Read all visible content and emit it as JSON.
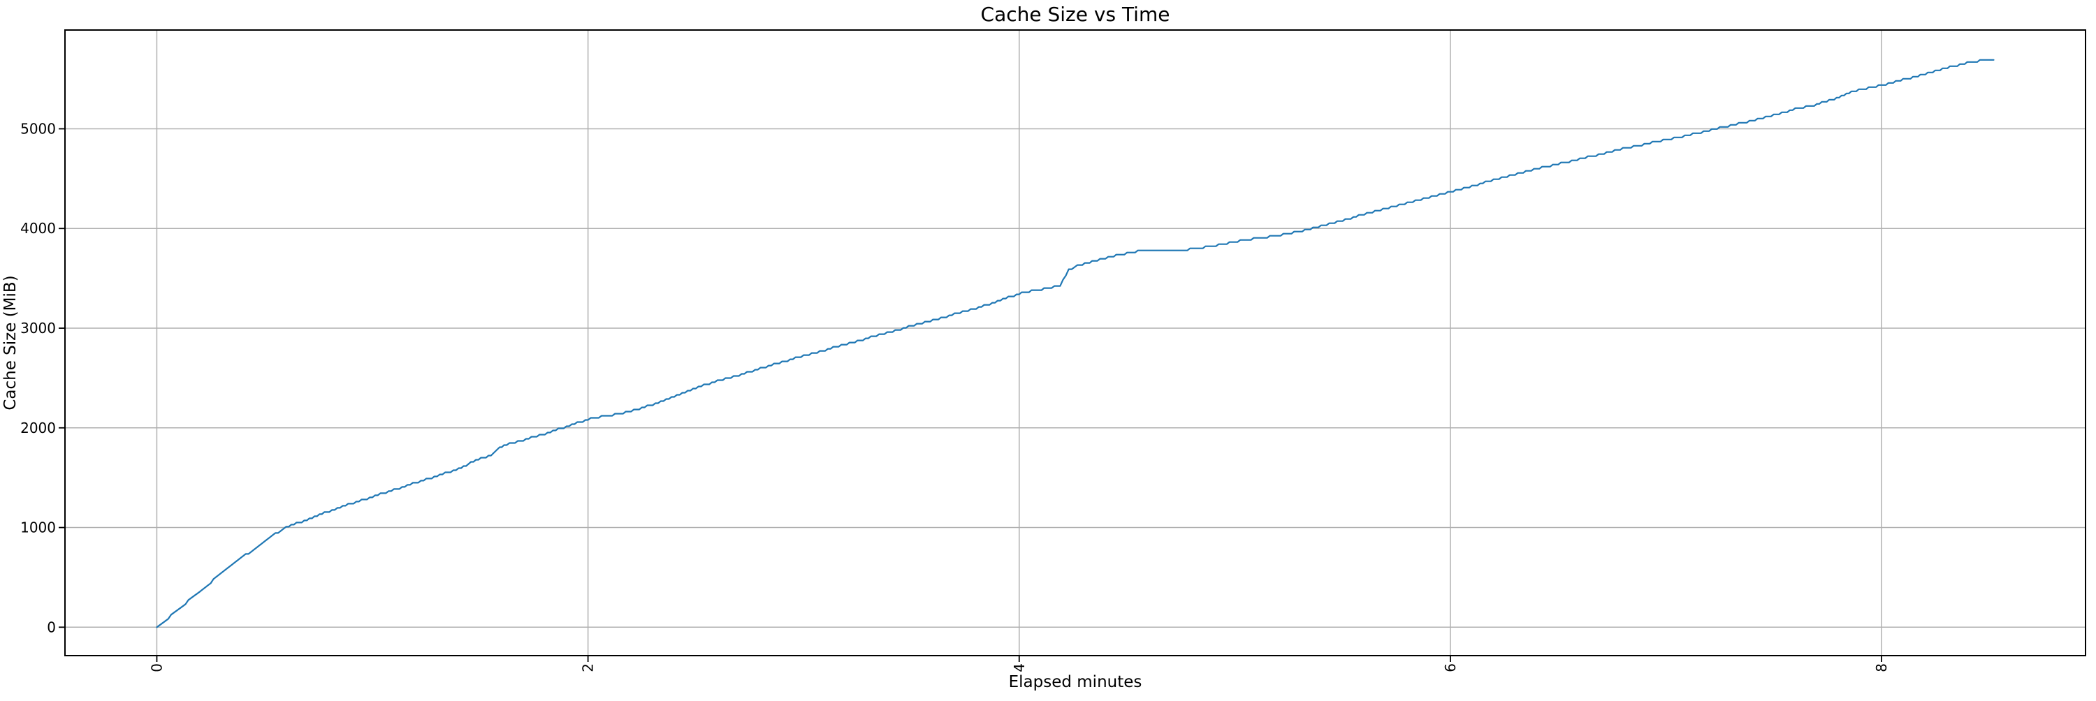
{
  "figure": {
    "background": "#ffffff"
  },
  "colors": {
    "line": "#1f77b4",
    "grid": "#b0b0b0",
    "spine": "#000000",
    "text": "#000000"
  },
  "chart_data": {
    "type": "line",
    "title": "Cache Size vs Time",
    "xlabel": "Elapsed minutes",
    "ylabel": "Cache Size (MiB)",
    "grid": true,
    "legend": "none",
    "xlim": [
      -0.426,
      8.946
    ],
    "ylim": [
      -285,
      5991
    ],
    "x_ticks": [
      0,
      2,
      4,
      6,
      8
    ],
    "x_tick_labels": [
      "0",
      "2",
      "4",
      "6",
      "8"
    ],
    "y_ticks": [
      0,
      1000,
      2000,
      3000,
      4000,
      5000
    ],
    "y_tick_labels": [
      "0",
      "1000",
      "2000",
      "3000",
      "4000",
      "5000"
    ],
    "series": [
      {
        "name": "Cache Size",
        "color": "#1f77b4",
        "points": [
          [
            0.0,
            0
          ],
          [
            0.04,
            70
          ],
          [
            0.08,
            140
          ],
          [
            0.12,
            215
          ],
          [
            0.16,
            290
          ],
          [
            0.2,
            360
          ],
          [
            0.25,
            450
          ],
          [
            0.3,
            540
          ],
          [
            0.35,
            625
          ],
          [
            0.4,
            705
          ],
          [
            0.45,
            785
          ],
          [
            0.5,
            860
          ],
          [
            0.55,
            935
          ],
          [
            0.6,
            1000
          ],
          [
            0.66,
            1050
          ],
          [
            0.72,
            1100
          ],
          [
            0.8,
            1165
          ],
          [
            0.9,
            1240
          ],
          [
            1.0,
            1308
          ],
          [
            1.1,
            1378
          ],
          [
            1.2,
            1448
          ],
          [
            1.3,
            1518
          ],
          [
            1.4,
            1590
          ],
          [
            1.48,
            1672
          ],
          [
            1.55,
            1728
          ],
          [
            1.58,
            1790
          ],
          [
            1.61,
            1828
          ],
          [
            1.7,
            1878
          ],
          [
            1.8,
            1942
          ],
          [
            1.9,
            2012
          ],
          [
            2.0,
            2085
          ],
          [
            2.1,
            2126
          ],
          [
            2.2,
            2168
          ],
          [
            2.3,
            2232
          ],
          [
            2.4,
            2310
          ],
          [
            2.5,
            2398
          ],
          [
            2.6,
            2472
          ],
          [
            2.7,
            2528
          ],
          [
            2.8,
            2598
          ],
          [
            2.9,
            2660
          ],
          [
            3.0,
            2722
          ],
          [
            3.1,
            2782
          ],
          [
            3.2,
            2842
          ],
          [
            3.3,
            2902
          ],
          [
            3.4,
            2962
          ],
          [
            3.5,
            3022
          ],
          [
            3.6,
            3082
          ],
          [
            3.7,
            3140
          ],
          [
            3.8,
            3200
          ],
          [
            3.9,
            3270
          ],
          [
            4.0,
            3345
          ],
          [
            4.08,
            3382
          ],
          [
            4.15,
            3405
          ],
          [
            4.19,
            3428
          ],
          [
            4.23,
            3585
          ],
          [
            4.27,
            3625
          ],
          [
            4.35,
            3672
          ],
          [
            4.45,
            3732
          ],
          [
            4.55,
            3772
          ],
          [
            4.65,
            3780
          ],
          [
            4.78,
            3788
          ],
          [
            4.9,
            3825
          ],
          [
            5.0,
            3868
          ],
          [
            5.1,
            3900
          ],
          [
            5.2,
            3932
          ],
          [
            5.3,
            3972
          ],
          [
            5.4,
            4022
          ],
          [
            5.5,
            4082
          ],
          [
            5.6,
            4142
          ],
          [
            5.7,
            4200
          ],
          [
            5.8,
            4258
          ],
          [
            5.9,
            4315
          ],
          [
            6.0,
            4368
          ],
          [
            6.1,
            4425
          ],
          [
            6.2,
            4488
          ],
          [
            6.3,
            4545
          ],
          [
            6.4,
            4598
          ],
          [
            6.5,
            4648
          ],
          [
            6.6,
            4695
          ],
          [
            6.7,
            4748
          ],
          [
            6.8,
            4800
          ],
          [
            6.9,
            4845
          ],
          [
            7.0,
            4890
          ],
          [
            7.1,
            4935
          ],
          [
            7.2,
            4985
          ],
          [
            7.3,
            5035
          ],
          [
            7.4,
            5082
          ],
          [
            7.5,
            5138
          ],
          [
            7.6,
            5198
          ],
          [
            7.7,
            5245
          ],
          [
            7.78,
            5302
          ],
          [
            7.86,
            5368
          ],
          [
            7.94,
            5412
          ],
          [
            8.02,
            5448
          ],
          [
            8.1,
            5492
          ],
          [
            8.18,
            5538
          ],
          [
            8.26,
            5585
          ],
          [
            8.34,
            5632
          ],
          [
            8.42,
            5672
          ],
          [
            8.48,
            5690
          ],
          [
            8.52,
            5698
          ]
        ]
      }
    ]
  }
}
